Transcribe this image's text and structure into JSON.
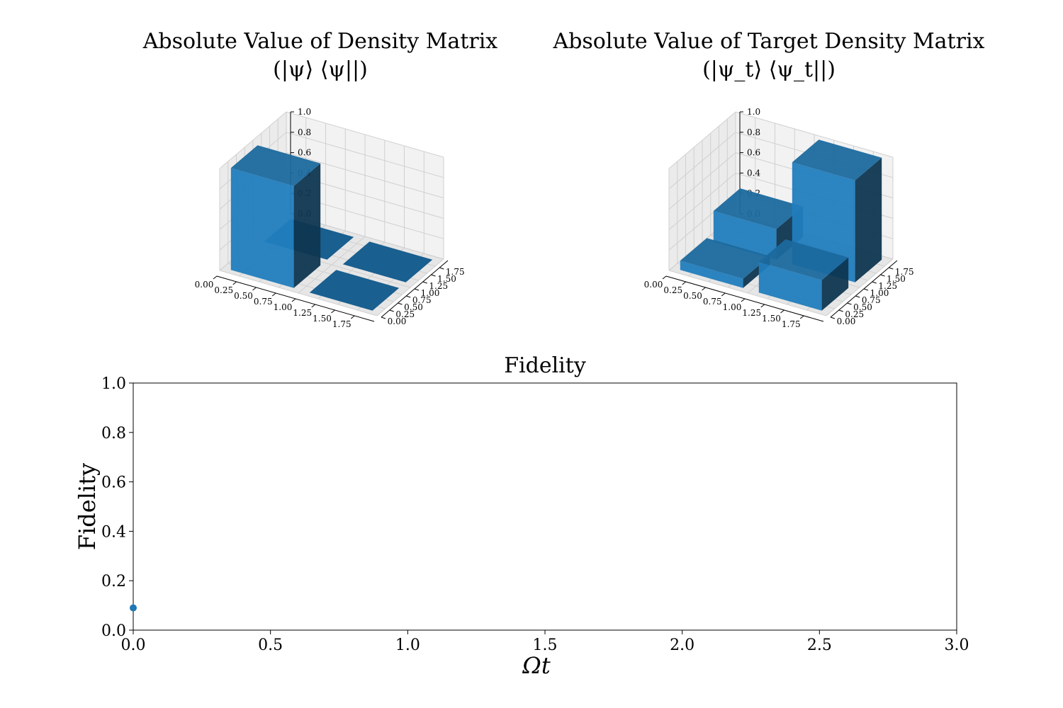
{
  "figure": {
    "background": "#ffffff",
    "bar_color": "#1f77b4",
    "marker_color": "#1f77b4"
  },
  "chart_data": [
    {
      "type": "bar3d",
      "title_line1": "Absolute Value of Density Matrix",
      "title_line2": "(|ψ⟩ ⟨ψ||)",
      "x_ticks": [
        "0.00",
        "0.25",
        "0.50",
        "0.75",
        "1.00",
        "1.25",
        "1.50",
        "1.75"
      ],
      "y_ticks": [
        "0.00",
        "0.25",
        "0.50",
        "0.75",
        "1.00",
        "1.25",
        "1.50",
        "1.75"
      ],
      "z_ticks": [
        "0.0",
        "0.2",
        "0.4",
        "0.6",
        "0.8",
        "1.0"
      ],
      "zlim": [
        0,
        1
      ],
      "cells": [
        {
          "row": 0,
          "col": 0,
          "value": 1.0
        },
        {
          "row": 0,
          "col": 1,
          "value": 0.0
        },
        {
          "row": 1,
          "col": 0,
          "value": 0.0
        },
        {
          "row": 1,
          "col": 1,
          "value": 0.0
        }
      ]
    },
    {
      "type": "bar3d",
      "title_line1": "Absolute Value of Target Density Matrix",
      "title_line2": "(|ψ_t⟩ ⟨ψ_t||)",
      "x_ticks": [
        "0.00",
        "0.25",
        "0.50",
        "0.75",
        "1.00",
        "1.25",
        "1.50",
        "1.75"
      ],
      "y_ticks": [
        "0.00",
        "0.25",
        "0.50",
        "0.75",
        "1.00",
        "1.25",
        "1.50",
        "1.75"
      ],
      "z_ticks": [
        "0.0",
        "0.2",
        "0.4",
        "0.6",
        "0.8",
        "1.0"
      ],
      "zlim": [
        0,
        1
      ],
      "cells": [
        {
          "row": 0,
          "col": 0,
          "value": 0.09
        },
        {
          "row": 0,
          "col": 1,
          "value": 0.3
        },
        {
          "row": 1,
          "col": 0,
          "value": 0.3
        },
        {
          "row": 1,
          "col": 1,
          "value": 1.0
        }
      ]
    },
    {
      "type": "scatter",
      "title": "Fidelity",
      "xlabel": "Ωt",
      "ylabel": "Fidelity",
      "xlim": [
        0,
        3
      ],
      "ylim": [
        0,
        1
      ],
      "x_ticks": [
        "0.0",
        "0.5",
        "1.0",
        "1.5",
        "2.0",
        "2.5",
        "3.0"
      ],
      "y_ticks": [
        "0.0",
        "0.2",
        "0.4",
        "0.6",
        "0.8",
        "1.0"
      ],
      "points": [
        {
          "x": 0.0,
          "y": 0.09
        }
      ]
    }
  ]
}
